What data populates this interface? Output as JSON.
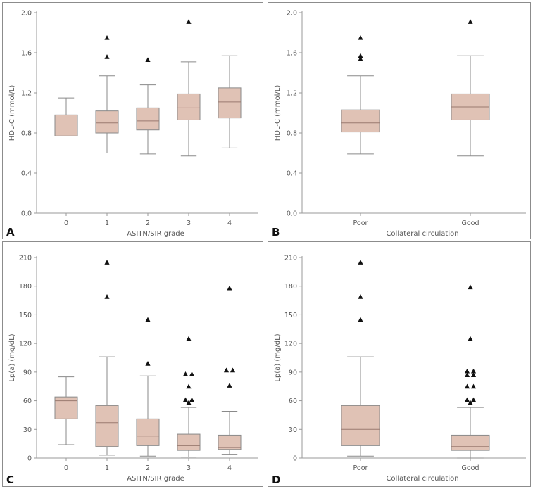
{
  "chart_data": [
    {
      "type": "box",
      "panel": "A",
      "xlabel": "ASITN/SIR grade",
      "ylabel": "HDL-C (mmol/L)",
      "ylim": [
        0,
        2.0
      ],
      "yticks": [
        "0.0",
        "0.4",
        "0.8",
        "1.2",
        "1.6",
        "2.0"
      ],
      "categories": [
        "0",
        "1",
        "2",
        "3",
        "4"
      ],
      "boxes": [
        {
          "whisker_low": 0.77,
          "q1": 0.77,
          "median": 0.86,
          "q3": 0.98,
          "whisker_high": 1.15,
          "outliers": []
        },
        {
          "whisker_low": 0.6,
          "q1": 0.8,
          "median": 0.9,
          "q3": 1.02,
          "whisker_high": 1.37,
          "outliers": [
            1.56,
            1.75
          ]
        },
        {
          "whisker_low": 0.59,
          "q1": 0.83,
          "median": 0.92,
          "q3": 1.05,
          "whisker_high": 1.28,
          "outliers": [
            1.53
          ]
        },
        {
          "whisker_low": 0.57,
          "q1": 0.93,
          "median": 1.05,
          "q3": 1.19,
          "whisker_high": 1.51,
          "outliers": [
            1.91
          ]
        },
        {
          "whisker_low": 0.65,
          "q1": 0.95,
          "median": 1.11,
          "q3": 1.25,
          "whisker_high": 1.57,
          "outliers": []
        }
      ]
    },
    {
      "type": "box",
      "panel": "B",
      "xlabel": "Collateral circulation",
      "ylabel": "HDL-C (mmol/L)",
      "ylim": [
        0,
        2.0
      ],
      "yticks": [
        "0.0",
        "0.4",
        "0.8",
        "1.2",
        "1.6",
        "2.0"
      ],
      "categories": [
        "Poor",
        "Good"
      ],
      "boxes": [
        {
          "whisker_low": 0.59,
          "q1": 0.81,
          "median": 0.9,
          "q3": 1.03,
          "whisker_high": 1.37,
          "outliers": [
            1.54,
            1.57,
            1.75
          ]
        },
        {
          "whisker_low": 0.57,
          "q1": 0.93,
          "median": 1.06,
          "q3": 1.19,
          "whisker_high": 1.57,
          "outliers": [
            1.91
          ]
        }
      ]
    },
    {
      "type": "box",
      "panel": "C",
      "xlabel": "ASITN/SIR grade",
      "ylabel": "Lp(a) (mg/dL)",
      "ylim": [
        0,
        210
      ],
      "yticks": [
        "0",
        "30",
        "60",
        "90",
        "120",
        "150",
        "180",
        "210"
      ],
      "categories": [
        "0",
        "1",
        "2",
        "3",
        "4"
      ],
      "boxes": [
        {
          "whisker_low": 14,
          "q1": 41,
          "median": 60,
          "q3": 64,
          "whisker_high": 85,
          "outliers": []
        },
        {
          "whisker_low": 3,
          "q1": 12,
          "median": 37,
          "q3": 55,
          "whisker_high": 106,
          "outliers": [
            169,
            205
          ]
        },
        {
          "whisker_low": 2,
          "q1": 13,
          "median": 23,
          "q3": 41,
          "whisker_high": 86,
          "outliers": [
            99,
            145
          ]
        },
        {
          "whisker_low": 1,
          "q1": 8,
          "median": 13,
          "q3": 25,
          "whisker_high": 53,
          "outliers": [
            58,
            61,
            61,
            75,
            88,
            88,
            125
          ]
        },
        {
          "whisker_low": 4,
          "q1": 9,
          "median": 11,
          "q3": 24,
          "whisker_high": 49,
          "outliers": [
            76,
            92,
            92,
            178
          ]
        }
      ]
    },
    {
      "type": "box",
      "panel": "D",
      "xlabel": "Collateral circulation",
      "ylabel": "Lp(a) (mg/dL)",
      "ylim": [
        0,
        210
      ],
      "yticks": [
        "0",
        "30",
        "60",
        "90",
        "120",
        "150",
        "180",
        "210"
      ],
      "categories": [
        "Poor",
        "Good"
      ],
      "boxes": [
        {
          "whisker_low": 2,
          "q1": 13,
          "median": 30,
          "q3": 55,
          "whisker_high": 106,
          "outliers": [
            145,
            169,
            205
          ]
        },
        {
          "whisker_low": 0,
          "q1": 8,
          "median": 12,
          "q3": 24,
          "whisker_high": 53,
          "outliers": [
            58,
            61,
            61,
            75,
            75,
            87,
            87,
            91,
            91,
            125,
            179
          ]
        }
      ]
    }
  ]
}
